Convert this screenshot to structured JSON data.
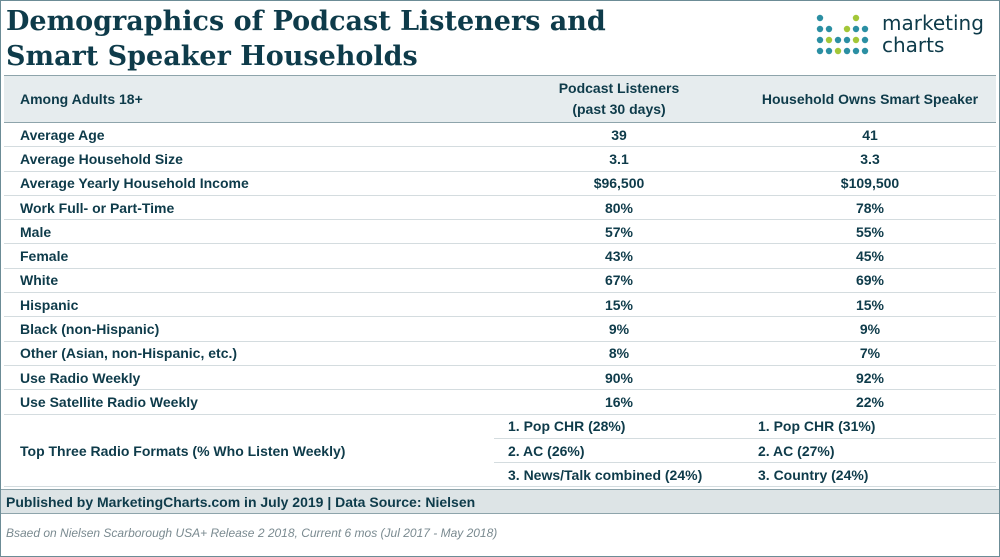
{
  "title_line1": "Demographics of Podcast Listeners and",
  "title_line2": "Smart Speaker Households",
  "logo": {
    "line1": "marketing",
    "line2": "charts"
  },
  "colors": {
    "text": "#0e3b4a",
    "header_bg": "#e6ecee",
    "footer_bg": "#dde4e6",
    "logo_teal": "#2b8fa3",
    "logo_green": "#a3c738"
  },
  "chart_data": {
    "type": "table",
    "columns": [
      "Among Adults 18+",
      "Podcast Listeners (past 30 days)",
      "Household Owns Smart Speaker"
    ],
    "header": {
      "col1": "Among Adults 18+",
      "col2_line1": "Podcast Listeners",
      "col2_line2": "(past 30 days)",
      "col3": "Household Owns Smart Speaker"
    },
    "rows": [
      {
        "label": "Average Age",
        "podcast": "39",
        "speaker": "41"
      },
      {
        "label": "Average Household Size",
        "podcast": "3.1",
        "speaker": "3.3"
      },
      {
        "label": "Average Yearly Household Income",
        "podcast": "$96,500",
        "speaker": "$109,500"
      },
      {
        "label": "Work Full- or Part-Time",
        "podcast": "80%",
        "speaker": "78%"
      },
      {
        "label": "Male",
        "podcast": "57%",
        "speaker": "55%"
      },
      {
        "label": "Female",
        "podcast": "43%",
        "speaker": "45%"
      },
      {
        "label": "White",
        "podcast": "67%",
        "speaker": "69%"
      },
      {
        "label": "Hispanic",
        "podcast": "15%",
        "speaker": "15%"
      },
      {
        "label": "Black (non-Hispanic)",
        "podcast": "9%",
        "speaker": "9%"
      },
      {
        "label": "Other (Asian, non-Hispanic, etc.)",
        "podcast": "8%",
        "speaker": "7%"
      },
      {
        "label": "Use Radio Weekly",
        "podcast": "90%",
        "speaker": "92%"
      },
      {
        "label": "Use Satellite Radio Weekly",
        "podcast": "16%",
        "speaker": "22%"
      }
    ],
    "formats": {
      "label": "Top Three Radio Formats (% Who Listen Weekly)",
      "podcast": [
        "1. Pop CHR (28%)",
        "2. AC (26%)",
        "3. News/Talk combined (24%)"
      ],
      "speaker": [
        "1. Pop CHR (31%)",
        "2. AC (27%)",
        "3. Country (24%)"
      ]
    }
  },
  "footer": "Published by MarketingCharts.com in July 2019 | Data Source: Nielsen",
  "note": "Bsaed on Nielsen Scarborough USA+ Release 2 2018, Current 6 mos (Jul 2017 - May 2018)"
}
